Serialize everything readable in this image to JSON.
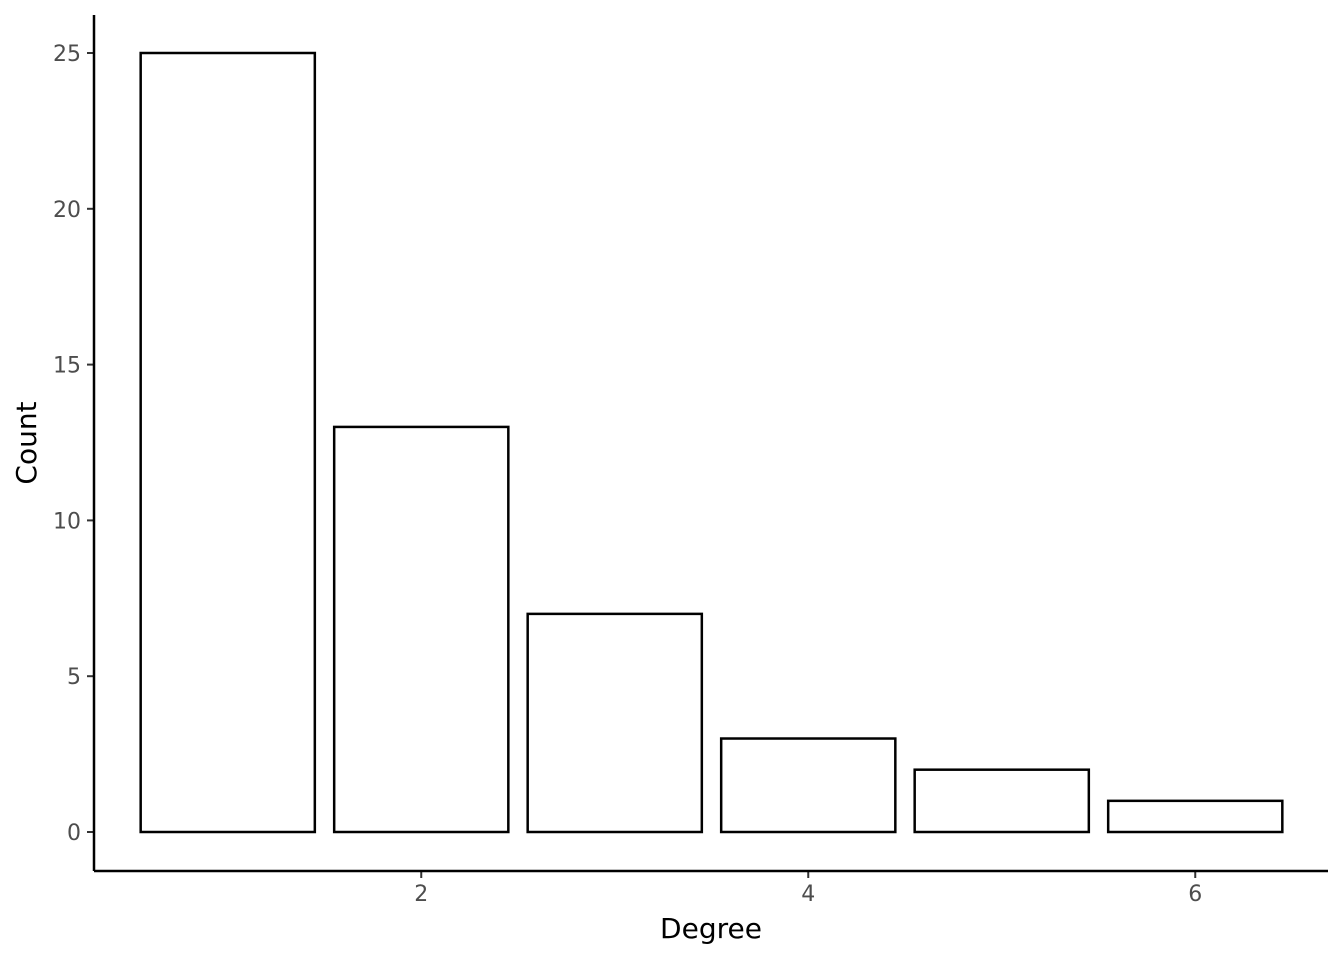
{
  "chart_data": {
    "type": "bar",
    "x": [
      1,
      2,
      3,
      4,
      5,
      6
    ],
    "values": [
      25,
      13,
      7,
      3,
      2,
      1
    ],
    "xlabel": "Degree",
    "ylabel": "Count",
    "xlim": [
      0.5,
      6.5
    ],
    "ylim": [
      0,
      26
    ],
    "x_ticks": [
      2,
      4,
      6
    ],
    "y_ticks": [
      0,
      5,
      10,
      15,
      20,
      25
    ],
    "grid": false,
    "bar_fill": "#ffffff",
    "bar_stroke": "#000000"
  }
}
